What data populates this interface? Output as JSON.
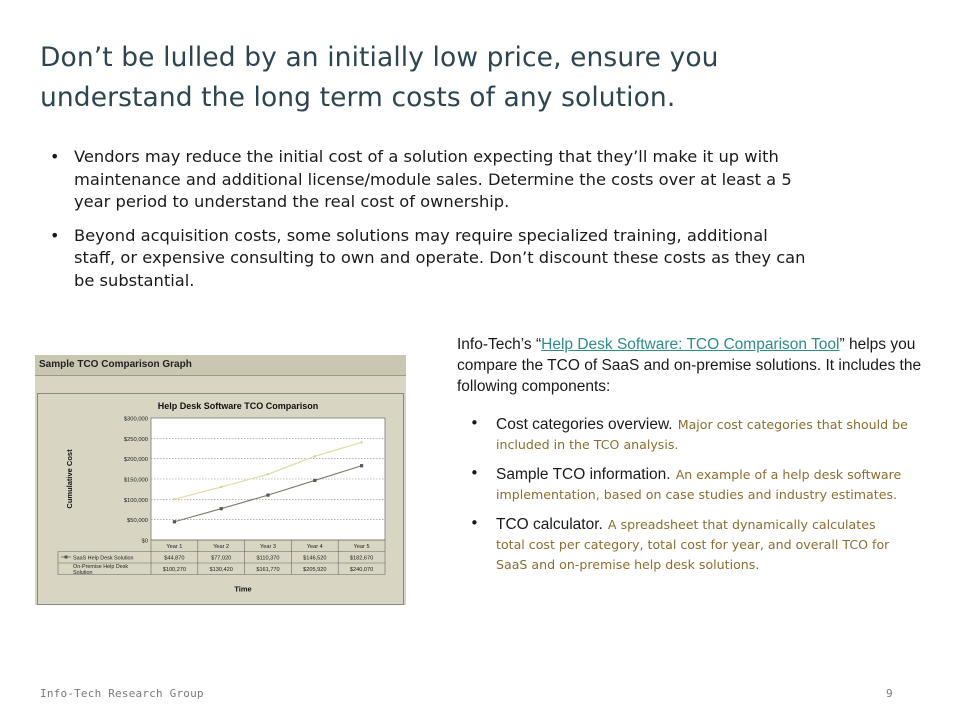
{
  "slide": {
    "title_line1": "Don’t be lulled by an initially low price, ensure you",
    "title_line2": "understand the long term costs of any solution.",
    "bullets": [
      "Vendors may reduce the initial cost of a solution expecting that they’ll make it up with maintenance and additional license/module sales. Determine the costs over at least a 5 year period to understand the real cost of ownership.",
      "Beyond acquisition costs, some solutions may require specialized training, additional staff, or expensive consulting to own and operate. Don’t discount these costs as they can be substantial."
    ]
  },
  "figure": {
    "header": "Sample TCO Comparison Graph",
    "colors": {
      "saas": "#7a7a6a",
      "onprem": "#e2dcae",
      "panel": "#d8d6c3",
      "plot": "#ffffff"
    }
  },
  "chart_data": {
    "type": "line",
    "title": "Help Desk Software TCO Comparison",
    "xlabel": "Time",
    "ylabel": "Cumulative Cost",
    "categories": [
      "Year 1",
      "Year 2",
      "Year 3",
      "Year 4",
      "Year 5"
    ],
    "ylim": [
      0,
      300000
    ],
    "yticks": [
      "$0",
      "$50,000",
      "$100,000",
      "$150,000",
      "$200,000",
      "$250,000",
      "$300,000"
    ],
    "grid": true,
    "legend": "data-table",
    "series": [
      {
        "name": "SaaS Help Desk Solution",
        "values": [
          44870,
          77020,
          110370,
          146520,
          182670
        ],
        "labels": [
          "$44,870",
          "$77,020",
          "$110,370",
          "$146,520",
          "$182,670"
        ]
      },
      {
        "name": "On-Premise Help Desk Solution",
        "values": [
          100270,
          130420,
          161770,
          205920,
          240070
        ],
        "labels": [
          "$100,270",
          "$130,420",
          "$161,770",
          "$205,920",
          "$240,070"
        ]
      }
    ]
  },
  "info": {
    "intro_pre": "Info-Tech’s “",
    "link_text": "Help Desk Software: TCO Comparison Tool",
    "intro_post": "” helps you compare the TCO of SaaS and on-premise solutions. It includes the following components:",
    "components": [
      {
        "title": "Cost categories overview.",
        "desc": "Major cost categories that should be included in the TCO analysis."
      },
      {
        "title": "Sample TCO information.",
        "desc": "An example of a help desk software implementation, based on case studies and industry estimates."
      },
      {
        "title": "TCO calculator.",
        "desc": "A spreadsheet that dynamically calculates total cost per category, total cost for year, and overall TCO for SaaS and on-premise help desk solutions."
      }
    ]
  },
  "footer": {
    "org": "Info-Tech Research Group",
    "page": "9"
  }
}
